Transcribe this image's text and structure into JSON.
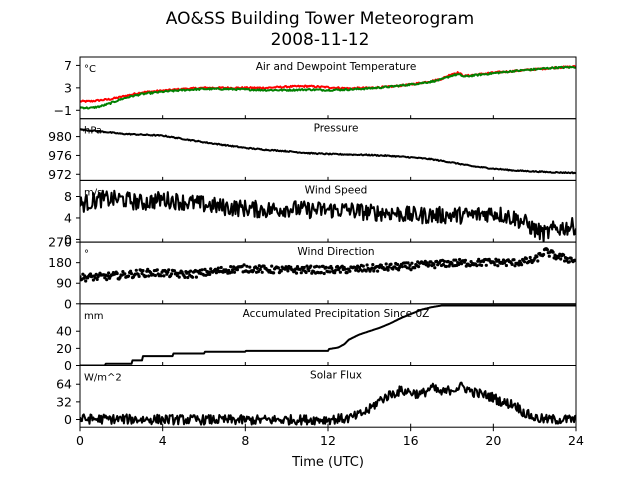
{
  "figure": {
    "title_line1": "AO&SS Building Tower Meteorogram",
    "title_line2": "2008-11-12",
    "xlabel": "Time (UTC)"
  },
  "chart_data": [
    {
      "type": "line",
      "title": "Air and Dewpoint Temperature",
      "unit": "°C",
      "xlim": [
        0,
        24
      ],
      "xticks": [
        "0",
        "4",
        "8",
        "12",
        "16",
        "20",
        "24"
      ],
      "ylim": [
        -2.5,
        8.5
      ],
      "yticks": [
        {
          "v": 7,
          "l": "7"
        },
        {
          "v": 3,
          "l": "3"
        },
        {
          "v": -1,
          "l": "−1"
        }
      ],
      "noise": 0.15,
      "series": [
        {
          "color": "#ff0000",
          "x": [
            0,
            0.5,
            1,
            1.5,
            2,
            2.5,
            3,
            4,
            5,
            6,
            7,
            8,
            9,
            10,
            11,
            12,
            13,
            14,
            15,
            16,
            17,
            17.5,
            18,
            18.3,
            18.6,
            19,
            20,
            21,
            22,
            23,
            24
          ],
          "y": [
            0.6,
            0.6,
            0.8,
            1.0,
            1.4,
            1.8,
            2.2,
            2.5,
            2.8,
            3.0,
            3.0,
            3.0,
            3.0,
            3.2,
            3.3,
            3.1,
            2.9,
            3.0,
            3.2,
            3.6,
            4.2,
            4.6,
            5.5,
            5.7,
            5.1,
            5.3,
            5.7,
            6.0,
            6.3,
            6.6,
            6.8
          ]
        },
        {
          "color": "#008000",
          "x": [
            0,
            0.5,
            1,
            1.5,
            2,
            2.5,
            3,
            4,
            5,
            6,
            7,
            8,
            9,
            10,
            11,
            12,
            13,
            14,
            15,
            16,
            17,
            17.5,
            18,
            18.3,
            18.6,
            19,
            20,
            21,
            22,
            23,
            24
          ],
          "y": [
            -0.5,
            -0.6,
            -0.3,
            0.3,
            1.0,
            1.5,
            1.9,
            2.3,
            2.6,
            2.8,
            2.8,
            2.7,
            2.6,
            2.6,
            2.7,
            2.6,
            2.7,
            2.9,
            3.2,
            3.6,
            4.1,
            4.5,
            5.2,
            5.4,
            5.0,
            5.2,
            5.6,
            6.0,
            6.3,
            6.6,
            6.7
          ]
        }
      ]
    },
    {
      "type": "line",
      "title": "Pressure",
      "unit": "hPa",
      "xlim": [
        0,
        24
      ],
      "ylim": [
        970.7,
        983.8
      ],
      "yticks": [
        {
          "v": 980,
          "l": "980"
        },
        {
          "v": 976,
          "l": "976"
        },
        {
          "v": 972,
          "l": "972"
        }
      ],
      "noise": 0.12,
      "series": [
        {
          "color": "#000000",
          "x": [
            0,
            1,
            2,
            3,
            4,
            5,
            6,
            7,
            8,
            9,
            10,
            11,
            12,
            13,
            14,
            15,
            16,
            17,
            18,
            19,
            20,
            21,
            22,
            23,
            24
          ],
          "y": [
            981.5,
            981.1,
            980.6,
            980.4,
            980.2,
            979.5,
            978.8,
            978.2,
            977.6,
            977.2,
            976.9,
            976.5,
            976.3,
            976.2,
            976.1,
            975.9,
            975.6,
            975.2,
            974.5,
            973.7,
            973.2,
            972.8,
            972.6,
            972.4,
            972.3
          ]
        }
      ]
    },
    {
      "type": "line",
      "title": "Wind Speed",
      "unit": "m/s",
      "xlim": [
        0,
        24
      ],
      "ylim": [
        -0.5,
        11
      ],
      "yticks": [
        {
          "v": 8,
          "l": "8"
        },
        {
          "v": 4,
          "l": "4"
        },
        {
          "v": 0,
          "l": "0"
        }
      ],
      "noise": 1.6,
      "series": [
        {
          "color": "#000000",
          "x": [
            0,
            1,
            2,
            3,
            4,
            5,
            6,
            7,
            8,
            9,
            10,
            11,
            12,
            13,
            14,
            15,
            16,
            17,
            18,
            19,
            20,
            21,
            21.5,
            22,
            22.5,
            23,
            24
          ],
          "y": [
            6.5,
            7.5,
            7.5,
            6.8,
            7.5,
            7.0,
            6.5,
            6.0,
            5.8,
            5.5,
            5.8,
            5.5,
            5.5,
            5.5,
            5.0,
            5.0,
            4.5,
            4.5,
            4.5,
            4.5,
            5.0,
            4.0,
            3.2,
            1.8,
            1.0,
            2.0,
            2.5
          ]
        }
      ]
    },
    {
      "type": "scatter",
      "title": "Wind Direction",
      "unit": "°",
      "xlim": [
        0,
        24
      ],
      "ylim": [
        0,
        270
      ],
      "yticks": [
        {
          "v": 270,
          "l": "270"
        },
        {
          "v": 180,
          "l": "180"
        },
        {
          "v": 90,
          "l": "90"
        },
        {
          "v": 0,
          "l": "0"
        }
      ],
      "noise": 16,
      "series": [
        {
          "color": "#000000",
          "x": [
            0,
            1,
            2,
            3,
            4,
            5,
            6,
            7,
            8,
            9,
            10,
            11,
            12,
            13,
            14,
            15,
            16,
            17,
            18,
            19,
            20,
            21,
            22,
            22.5,
            23,
            23.5,
            24
          ],
          "y": [
            115,
            118,
            125,
            135,
            135,
            128,
            135,
            148,
            155,
            150,
            148,
            150,
            148,
            150,
            155,
            160,
            165,
            172,
            178,
            180,
            182,
            180,
            190,
            230,
            210,
            198,
            190
          ]
        }
      ]
    },
    {
      "type": "line",
      "title": "Accumulated Precipitation Since 0Z",
      "unit": "mm",
      "xlim": [
        0,
        24
      ],
      "ylim": [
        0,
        72
      ],
      "yticks": [
        {
          "v": 40,
          "l": "40"
        },
        {
          "v": 20,
          "l": "20"
        },
        {
          "v": 0,
          "l": "0"
        }
      ],
      "noise": 0,
      "series": [
        {
          "color": "#000000",
          "x": [
            0,
            1.2,
            1.2,
            2.5,
            2.5,
            3.0,
            3.0,
            4.5,
            4.5,
            6.0,
            6.0,
            8.0,
            8.0,
            12.0,
            12.0,
            12.5,
            12.8,
            13.0,
            13.5,
            14.0,
            14.5,
            15.0,
            15.5,
            16.0,
            16.5,
            17.0,
            17.5,
            24.0
          ],
          "y": [
            0,
            0,
            2,
            2,
            6,
            6,
            11,
            11,
            14,
            14,
            16,
            16,
            17,
            17,
            19,
            21,
            25,
            30,
            36,
            40,
            44,
            49,
            55,
            60,
            65,
            68,
            70,
            70
          ]
        }
      ]
    },
    {
      "type": "line",
      "title": "Solar Flux",
      "unit": "W/m^2",
      "xlim": [
        0,
        24
      ],
      "ylim": [
        -14,
        98
      ],
      "yticks": [
        {
          "v": 64,
          "l": "64"
        },
        {
          "v": 32,
          "l": "32"
        },
        {
          "v": 0,
          "l": "0"
        }
      ],
      "noise": 9,
      "series": [
        {
          "color": "#000000",
          "x": [
            0,
            4,
            8,
            12,
            13,
            13.5,
            14,
            14.5,
            15,
            15.5,
            16,
            16.5,
            17,
            17.5,
            18,
            18.5,
            19,
            19.5,
            20,
            20.5,
            21,
            21.5,
            22,
            22.5,
            24
          ],
          "y": [
            1,
            0,
            -1,
            0,
            2,
            8,
            18,
            35,
            45,
            52,
            50,
            45,
            58,
            48,
            55,
            60,
            50,
            45,
            40,
            30,
            28,
            12,
            3,
            0,
            0
          ]
        }
      ]
    }
  ]
}
